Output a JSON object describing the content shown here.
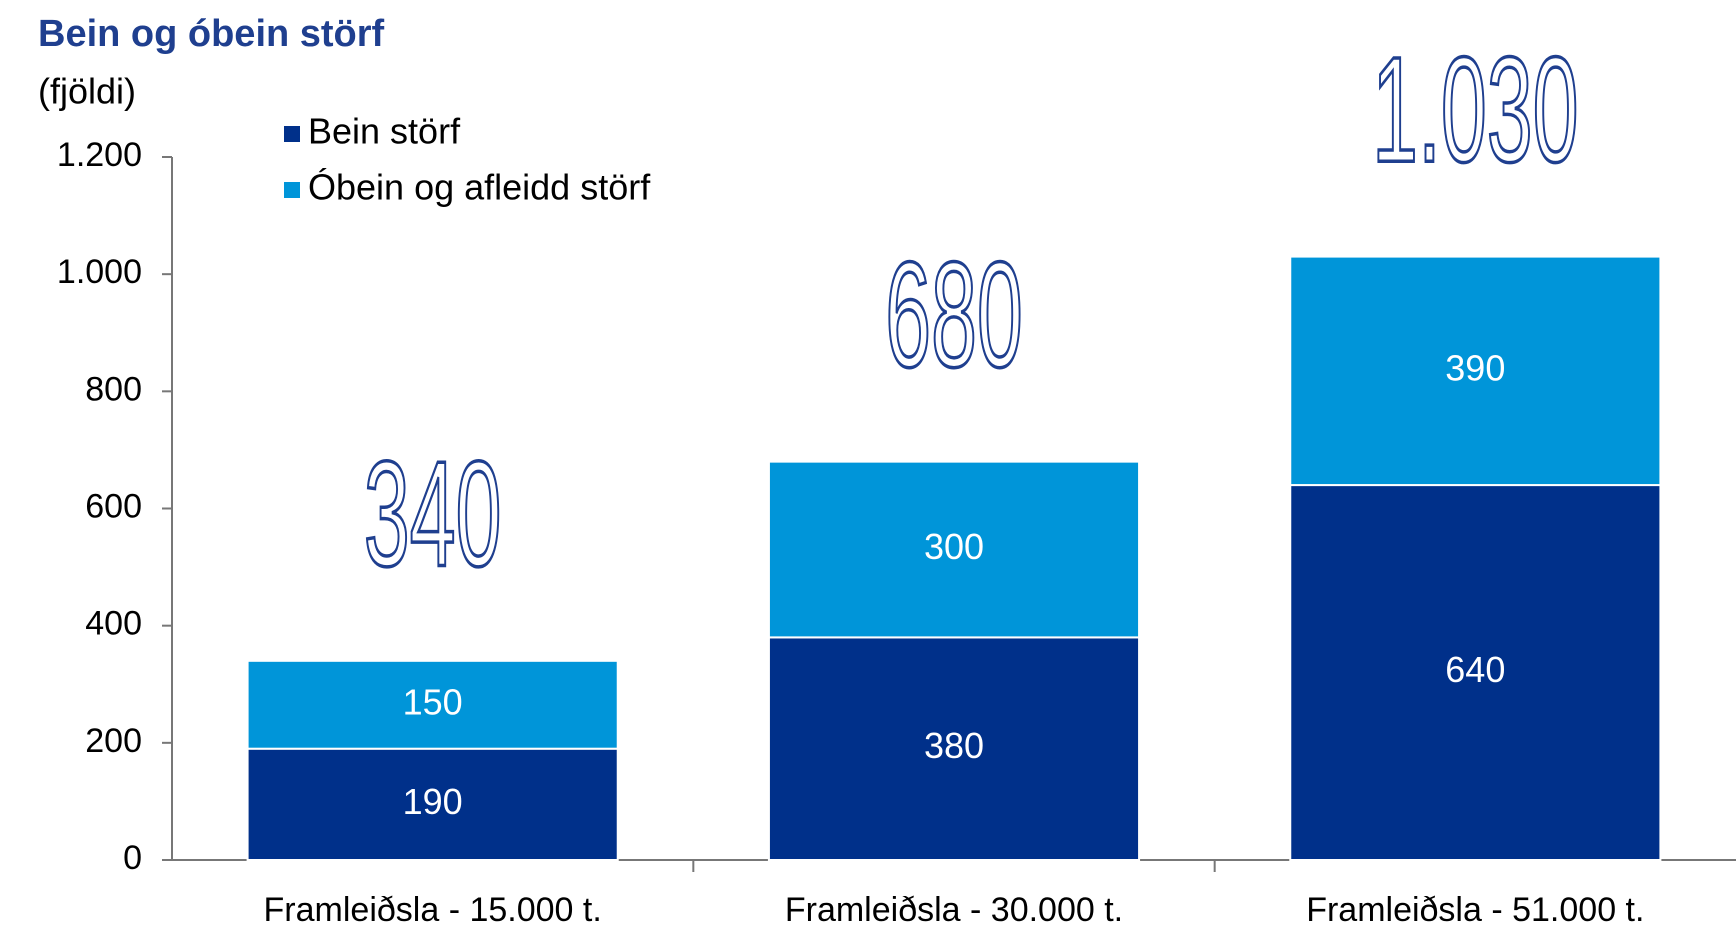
{
  "chart_data": {
    "type": "stacked_bar",
    "title": "Bein og óbein störf",
    "y_label": "(fjöldi)",
    "categories": [
      "Framleiðsla - 15.000 t.",
      "Framleiðsla - 30.000 t.",
      "Framleiðsla - 51.000 t."
    ],
    "series": [
      {
        "name": "Bein störf",
        "color": "#00308a",
        "values": [
          190,
          380,
          640
        ]
      },
      {
        "name": "Óbein og afleidd störf",
        "color": "#0095d9",
        "values": [
          150,
          300,
          390
        ]
      }
    ],
    "totals": {
      "values": [
        340,
        680,
        1030
      ],
      "value_labels": [
        "340",
        "680",
        "1.030"
      ]
    },
    "ylim": [
      0,
      1200
    ],
    "yticks": [
      0,
      200,
      400,
      600,
      800,
      {
        "value": 1000,
        "label": "1.000"
      },
      {
        "value": 1200,
        "label": "1.200"
      }
    ],
    "grid": false,
    "legend": "top-left"
  }
}
